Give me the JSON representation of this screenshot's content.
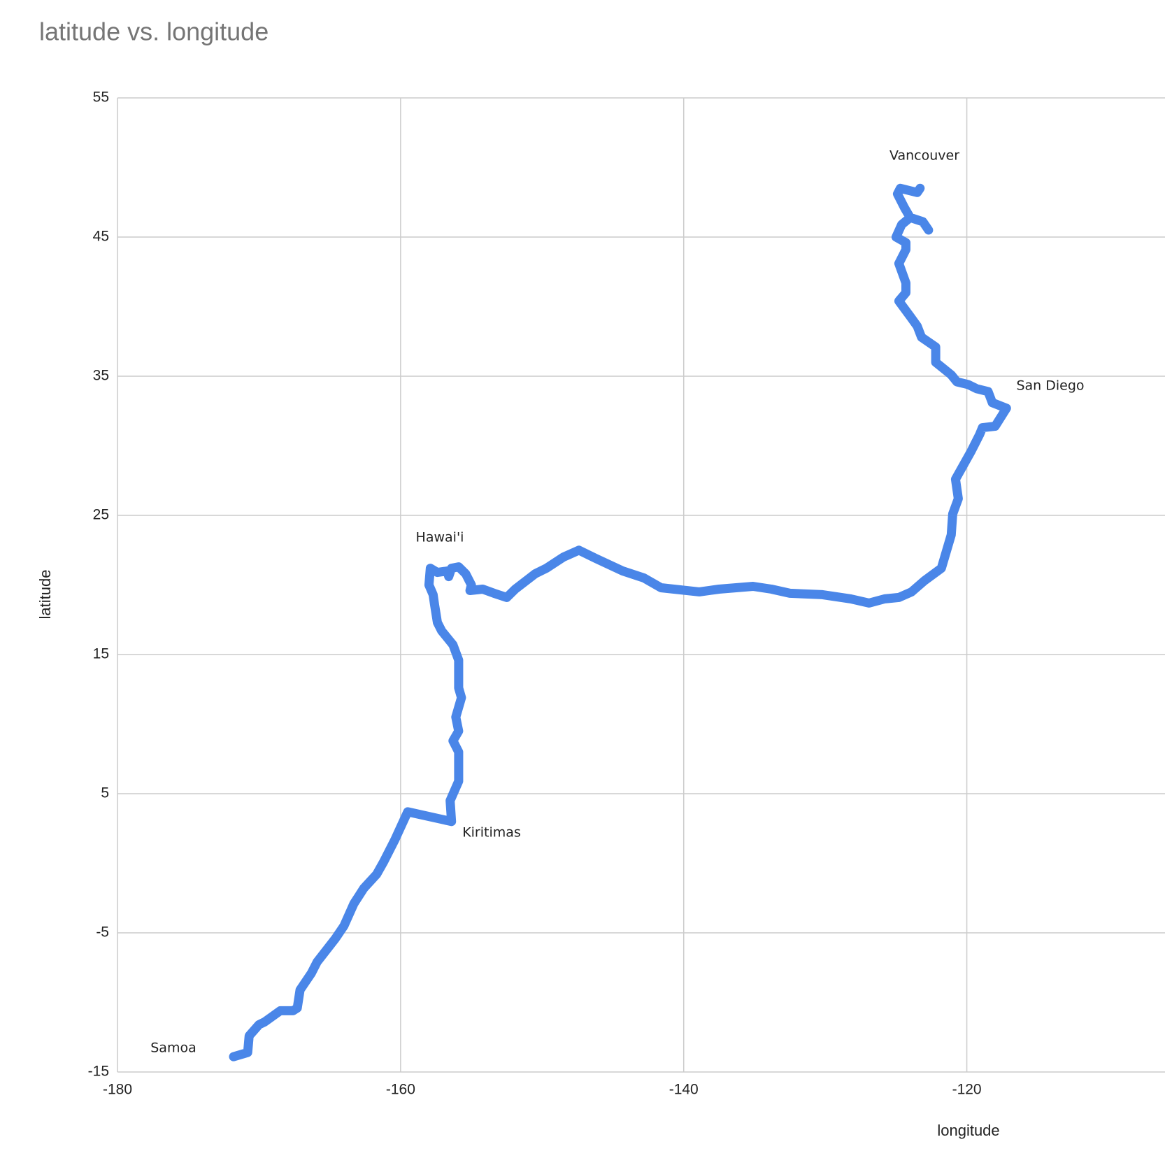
{
  "chart_data": {
    "type": "line",
    "title": "latitude vs. longitude",
    "x_label": "longitude",
    "y_label": "latitude",
    "color": "#4a86e8",
    "grid": true,
    "xlim": [
      -180,
      -106
    ],
    "xticks": [
      -180,
      -160,
      -140,
      -120
    ],
    "ylim": [
      -15,
      55
    ],
    "yticks": [
      -15,
      -5,
      5,
      15,
      25,
      35,
      45,
      55
    ],
    "annotations": [
      "Vancouver",
      "San Diego",
      "Hawai'i",
      "Kiritimas",
      "Samoa"
    ],
    "x": [
      -171.8,
      -170.8,
      -170.7,
      -170.0,
      -169.6,
      -168.5,
      -167.6,
      -167.3,
      -167.1,
      -166.3,
      -165.9,
      -164.6,
      -164.0,
      -163.3,
      -162.6,
      -161.7,
      -161.2,
      -160.4,
      -159.5,
      -156.4,
      -156.5,
      -155.9,
      -155.9,
      -156.3,
      -155.9,
      -156.1,
      -155.7,
      -155.9,
      -155.9,
      -156.3,
      -157.1,
      -157.4,
      -157.6,
      -157.7,
      -158.0,
      -157.9,
      -157.4,
      -156.7,
      -156.6,
      -156.4,
      -155.9,
      -155.4,
      -155.0,
      -155.1,
      -154.2,
      -153.4,
      -152.5,
      -151.9,
      -150.5,
      -149.7,
      -148.5,
      -147.4,
      -146.2,
      -144.3,
      -142.8,
      -141.6,
      -138.9,
      -137.5,
      -135.1,
      -133.8,
      -132.5,
      -130.2,
      -128.2,
      -126.9,
      -125.8,
      -124.8,
      -123.9,
      -123.0,
      -121.8,
      -121.1,
      -121.0,
      -120.6,
      -120.8,
      -119.7,
      -119.1,
      -118.9,
      -118.0,
      -117.2,
      -118.2,
      -118.5,
      -119.3,
      -119.9,
      -120.7,
      -121.1,
      -122.2,
      -122.2,
      -123.2,
      -123.5,
      -124.0,
      -124.8,
      -124.3,
      -124.3,
      -124.8,
      -124.3,
      -124.3,
      -125.0,
      -124.6,
      -124.0,
      -123.1,
      -122.7,
      -123.1,
      -124.0,
      -124.4,
      -124.9,
      -124.7,
      -123.5,
      -123.3
    ],
    "values": [
      -13.9,
      -13.6,
      -12.4,
      -11.6,
      -11.4,
      -10.6,
      -10.6,
      -10.4,
      -9.1,
      -7.9,
      -7.1,
      -5.4,
      -4.5,
      -2.9,
      -1.8,
      -0.8,
      0.1,
      1.7,
      3.7,
      3.0,
      4.5,
      5.9,
      8.0,
      8.8,
      9.5,
      10.5,
      11.9,
      12.6,
      14.6,
      15.7,
      16.7,
      17.3,
      18.6,
      19.3,
      20.0,
      21.2,
      20.9,
      21.0,
      20.6,
      21.2,
      21.3,
      20.8,
      20.0,
      19.6,
      19.7,
      19.4,
      19.1,
      19.7,
      20.8,
      21.2,
      22.0,
      22.5,
      21.9,
      21.0,
      20.5,
      19.8,
      19.5,
      19.7,
      19.9,
      19.7,
      19.4,
      19.3,
      19.0,
      18.7,
      19.0,
      19.1,
      19.5,
      20.3,
      21.2,
      23.6,
      25.1,
      26.2,
      27.6,
      29.6,
      30.8,
      31.3,
      31.4,
      32.7,
      33.1,
      33.9,
      34.1,
      34.4,
      34.6,
      35.1,
      36.0,
      37.1,
      37.8,
      38.6,
      39.3,
      40.4,
      41.0,
      41.7,
      43.1,
      44.1,
      44.6,
      45.0,
      45.9,
      46.4,
      46.1,
      45.5,
      46.1,
      46.4,
      47.1,
      48.1,
      48.5,
      48.2,
      48.5
    ]
  }
}
